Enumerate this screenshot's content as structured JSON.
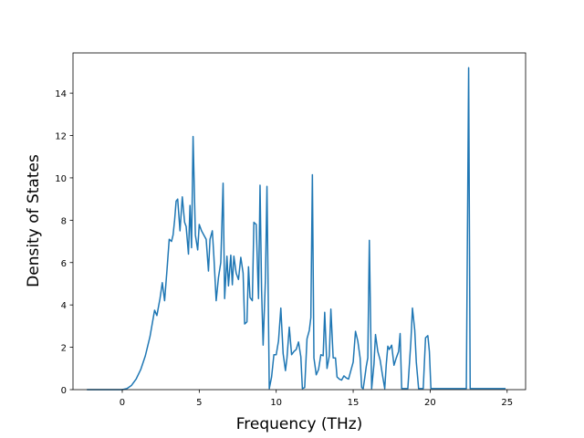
{
  "chart_data": {
    "type": "line",
    "title": "",
    "xlabel": "Frequency (THz)",
    "ylabel": "Density of States",
    "xlim": [
      -3.2,
      26.2
    ],
    "ylim": [
      0,
      15.9
    ],
    "grid": false,
    "legend": "none",
    "x_ticks": [
      0,
      5,
      10,
      15,
      20,
      25
    ],
    "y_ticks": [
      0,
      2,
      4,
      6,
      8,
      10,
      12,
      14
    ],
    "x_tick_labels": [
      "0",
      "5",
      "10",
      "15",
      "20",
      "25"
    ],
    "y_tick_labels": [
      "0",
      "2",
      "4",
      "6",
      "8",
      "10",
      "12",
      "14"
    ],
    "series": [
      {
        "name": "",
        "color": "#1f77b4",
        "points": [
          [
            -2.3,
            0
          ],
          [
            0,
            0
          ],
          [
            0.3,
            0.05
          ],
          [
            0.6,
            0.2
          ],
          [
            0.9,
            0.5
          ],
          [
            1.2,
            0.95
          ],
          [
            1.5,
            1.6
          ],
          [
            1.8,
            2.5
          ],
          [
            2.1,
            3.75
          ],
          [
            2.25,
            3.5
          ],
          [
            2.45,
            4.3
          ],
          [
            2.6,
            5.05
          ],
          [
            2.75,
            4.2
          ],
          [
            2.9,
            5.6
          ],
          [
            3.05,
            7.1
          ],
          [
            3.2,
            7.0
          ],
          [
            3.3,
            7.3
          ],
          [
            3.4,
            8.0
          ],
          [
            3.5,
            8.9
          ],
          [
            3.6,
            9.0
          ],
          [
            3.75,
            7.5
          ],
          [
            3.9,
            9.1
          ],
          [
            4.05,
            7.9
          ],
          [
            4.15,
            7.7
          ],
          [
            4.3,
            6.4
          ],
          [
            4.4,
            8.7
          ],
          [
            4.5,
            6.7
          ],
          [
            4.6,
            11.95
          ],
          [
            4.75,
            7.3
          ],
          [
            4.9,
            6.6
          ],
          [
            5.0,
            7.8
          ],
          [
            5.15,
            7.5
          ],
          [
            5.3,
            7.3
          ],
          [
            5.45,
            7.1
          ],
          [
            5.6,
            5.6
          ],
          [
            5.7,
            7.1
          ],
          [
            5.85,
            7.5
          ],
          [
            5.95,
            6.3
          ],
          [
            6.1,
            4.2
          ],
          [
            6.25,
            5.3
          ],
          [
            6.4,
            6.0
          ],
          [
            6.55,
            9.75
          ],
          [
            6.65,
            4.3
          ],
          [
            6.8,
            6.3
          ],
          [
            6.9,
            4.9
          ],
          [
            7.05,
            6.35
          ],
          [
            7.15,
            4.95
          ],
          [
            7.25,
            6.3
          ],
          [
            7.4,
            5.5
          ],
          [
            7.55,
            5.2
          ],
          [
            7.7,
            6.25
          ],
          [
            7.85,
            5.5
          ],
          [
            7.95,
            3.1
          ],
          [
            8.1,
            3.2
          ],
          [
            8.2,
            5.8
          ],
          [
            8.3,
            4.35
          ],
          [
            8.45,
            4.2
          ],
          [
            8.55,
            7.9
          ],
          [
            8.7,
            7.8
          ],
          [
            8.85,
            4.3
          ],
          [
            8.95,
            9.65
          ],
          [
            9.05,
            4.7
          ],
          [
            9.15,
            2.1
          ],
          [
            9.3,
            5.2
          ],
          [
            9.4,
            9.6
          ],
          [
            9.55,
            0.05
          ],
          [
            9.7,
            0.6
          ],
          [
            9.85,
            1.65
          ],
          [
            10.0,
            1.65
          ],
          [
            10.15,
            2.3
          ],
          [
            10.3,
            3.85
          ],
          [
            10.45,
            1.7
          ],
          [
            10.6,
            0.9
          ],
          [
            10.7,
            1.5
          ],
          [
            10.85,
            2.95
          ],
          [
            11.0,
            1.65
          ],
          [
            11.15,
            1.8
          ],
          [
            11.3,
            1.9
          ],
          [
            11.45,
            2.25
          ],
          [
            11.6,
            1.55
          ],
          [
            11.7,
            0.05
          ],
          [
            11.85,
            0.1
          ],
          [
            12.0,
            2.4
          ],
          [
            12.15,
            2.8
          ],
          [
            12.25,
            3.4
          ],
          [
            12.35,
            10.15
          ],
          [
            12.45,
            1.5
          ],
          [
            12.6,
            0.7
          ],
          [
            12.75,
            0.95
          ],
          [
            12.9,
            1.65
          ],
          [
            13.05,
            1.6
          ],
          [
            13.15,
            3.65
          ],
          [
            13.3,
            1.0
          ],
          [
            13.45,
            1.6
          ],
          [
            13.55,
            3.8
          ],
          [
            13.7,
            1.5
          ],
          [
            13.85,
            1.5
          ],
          [
            13.95,
            0.6
          ],
          [
            14.1,
            0.5
          ],
          [
            14.25,
            0.45
          ],
          [
            14.4,
            0.65
          ],
          [
            14.55,
            0.55
          ],
          [
            14.7,
            0.5
          ],
          [
            14.85,
            0.9
          ],
          [
            15.0,
            1.3
          ],
          [
            15.15,
            2.75
          ],
          [
            15.3,
            2.3
          ],
          [
            15.45,
            1.5
          ],
          [
            15.55,
            0.1
          ],
          [
            15.65,
            0.05
          ],
          [
            15.75,
            0.55
          ],
          [
            15.85,
            1.1
          ],
          [
            15.95,
            1.5
          ],
          [
            16.05,
            7.05
          ],
          [
            16.2,
            0.05
          ],
          [
            16.35,
            1.2
          ],
          [
            16.45,
            2.6
          ],
          [
            16.6,
            1.8
          ],
          [
            16.75,
            1.4
          ],
          [
            16.9,
            0.7
          ],
          [
            17.05,
            0.05
          ],
          [
            17.15,
            1.2
          ],
          [
            17.25,
            2.05
          ],
          [
            17.35,
            1.9
          ],
          [
            17.5,
            2.1
          ],
          [
            17.65,
            1.15
          ],
          [
            17.8,
            1.5
          ],
          [
            17.95,
            1.8
          ],
          [
            18.05,
            2.65
          ],
          [
            18.15,
            0.05
          ],
          [
            18.55,
            0.05
          ],
          [
            18.75,
            2.3
          ],
          [
            18.85,
            3.85
          ],
          [
            19.0,
            2.8
          ],
          [
            19.1,
            1.3
          ],
          [
            19.25,
            0.05
          ],
          [
            19.55,
            0.05
          ],
          [
            19.7,
            2.45
          ],
          [
            19.85,
            2.55
          ],
          [
            19.95,
            1.8
          ],
          [
            20.05,
            0.05
          ],
          [
            22.35,
            0.05
          ],
          [
            22.5,
            15.2
          ],
          [
            22.6,
            0.05
          ],
          [
            24.9,
            0.05
          ]
        ]
      }
    ]
  }
}
